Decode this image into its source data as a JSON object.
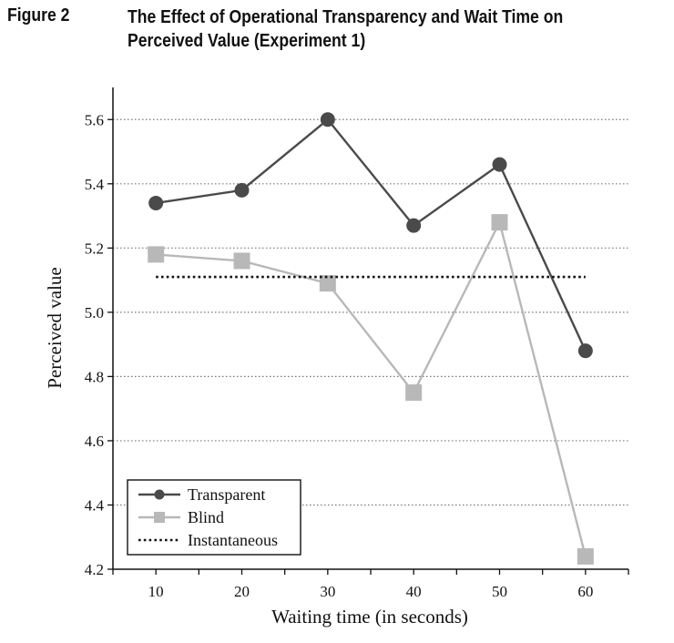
{
  "figure": {
    "label": "Figure 2",
    "title_line1": "The Effect of Operational Transparency and Wait Time on",
    "title_line2": "Perceived Value (Experiment 1)"
  },
  "chart_data": {
    "type": "line",
    "title": "The Effect of Operational Transparency and Wait Time on Perceived Value (Experiment 1)",
    "xlabel": "Waiting time (in seconds)",
    "ylabel": "Perceived value",
    "x": [
      10,
      20,
      30,
      40,
      50,
      60
    ],
    "xticks": [
      "10",
      "20",
      "30",
      "40",
      "50",
      "60"
    ],
    "ylim": [
      4.2,
      5.7
    ],
    "yticks": [
      "4.2",
      "4.4",
      "4.6",
      "4.8",
      "5.0",
      "5.2",
      "5.4",
      "5.6"
    ],
    "grid": "horizontal dotted",
    "legend_position": "bottom-left",
    "series": [
      {
        "name": "Transparent",
        "values": [
          5.34,
          5.38,
          5.6,
          5.27,
          5.46,
          4.88
        ],
        "color": "#4a4a4a",
        "marker": "circle"
      },
      {
        "name": "Blind",
        "values": [
          5.18,
          5.16,
          5.09,
          4.75,
          5.28,
          4.24
        ],
        "color": "#b8b8b8",
        "marker": "square"
      },
      {
        "name": "Instantaneous",
        "values": [
          5.11,
          5.11,
          5.11,
          5.11,
          5.11,
          5.11
        ],
        "color": "#111111",
        "marker": "none",
        "style": "dotted"
      }
    ]
  }
}
